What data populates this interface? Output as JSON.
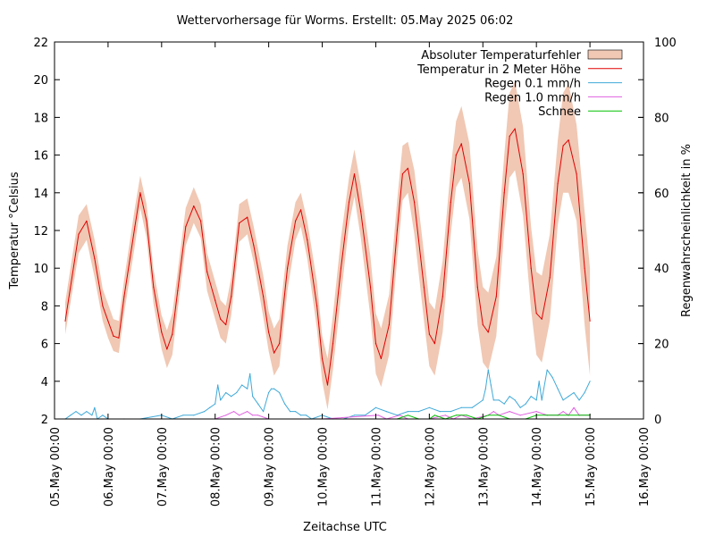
{
  "chart_data": {
    "type": "line",
    "title": "Wettervorhersage für Worms. Erstellt: 05.May 2025 06:02",
    "xlabel": "Zeitachse UTC",
    "ylabel": "Temperatur °Celsius",
    "y2label": "Regenwahrscheinlichkeit in %",
    "xlim": [
      0,
      11
    ],
    "ylim": [
      2,
      22
    ],
    "y2lim": [
      0,
      100
    ],
    "grid": false,
    "legend_position": "top-right",
    "x_tick_labels": [
      "05.May 00:00",
      "06.May 00:00",
      "07.May 00:00",
      "08.May 00:00",
      "09.May 00:00",
      "10.May 00:00",
      "11.May 00:00",
      "12.May 00:00",
      "13.May 00:00",
      "14.May 00:00",
      "15.May 00:00",
      "16.May 00:00"
    ],
    "y_ticks": [
      2,
      4,
      6,
      8,
      10,
      12,
      14,
      16,
      18,
      20,
      22
    ],
    "y2_ticks": [
      0,
      20,
      40,
      60,
      80,
      100
    ],
    "colors": {
      "band": "#f0c8b4",
      "temperature": "#e00000",
      "rain01": "#3fa9d8",
      "rain10": "#e060e0",
      "snow": "#00c000"
    },
    "legend": [
      {
        "key": "band",
        "label": "Absoluter Temperaturfehler"
      },
      {
        "key": "temperature",
        "label": "Temperatur in 2 Meter Höhe"
      },
      {
        "key": "rain01",
        "label": "Regen 0.1 mm/h"
      },
      {
        "key": "rain10",
        "label": "Regen 1.0 mm/h"
      },
      {
        "key": "snow",
        "label": "Schnee"
      }
    ],
    "series": [
      {
        "name": "Temperatur in 2 Meter Höhe",
        "key": "temperature",
        "x": [
          0.2,
          0.45,
          0.6,
          0.75,
          0.9,
          1.0,
          1.1,
          1.2,
          1.3,
          1.5,
          1.6,
          1.72,
          1.85,
          2.0,
          2.1,
          2.2,
          2.3,
          2.45,
          2.6,
          2.73,
          2.85,
          3.0,
          3.1,
          3.2,
          3.3,
          3.45,
          3.6,
          3.72,
          3.9,
          4.0,
          4.1,
          4.2,
          4.35,
          4.5,
          4.6,
          4.72,
          4.9,
          5.0,
          5.1,
          5.2,
          5.35,
          5.5,
          5.6,
          5.72,
          5.9,
          6.0,
          6.1,
          6.25,
          6.4,
          6.5,
          6.6,
          6.72,
          6.9,
          7.0,
          7.1,
          7.25,
          7.4,
          7.5,
          7.6,
          7.75,
          7.9,
          8.0,
          8.1,
          8.25,
          8.4,
          8.5,
          8.6,
          8.75,
          8.9,
          9.0,
          9.1,
          9.25,
          9.4,
          9.5,
          9.6,
          9.75,
          9.9,
          10.0
        ],
        "values": [
          7.2,
          11.8,
          12.5,
          10.5,
          8.0,
          7.2,
          6.4,
          6.3,
          8.5,
          12.2,
          14.0,
          12.5,
          9.0,
          6.6,
          5.7,
          6.5,
          8.8,
          12.2,
          13.3,
          12.5,
          9.8,
          8.3,
          7.3,
          7.0,
          8.5,
          12.4,
          12.7,
          11.2,
          8.5,
          6.6,
          5.5,
          6.0,
          10.0,
          12.5,
          13.1,
          11.5,
          8.0,
          5.2,
          3.8,
          6.0,
          10.0,
          13.5,
          15.0,
          13.0,
          9.0,
          6.0,
          5.2,
          7.0,
          12.0,
          15.0,
          15.3,
          13.5,
          9.0,
          6.5,
          6.0,
          8.5,
          13.5,
          16.0,
          16.6,
          14.5,
          9.0,
          7.0,
          6.6,
          8.5,
          14.0,
          17.0,
          17.4,
          15.0,
          10.0,
          7.6,
          7.3,
          9.5,
          14.5,
          16.5,
          16.8,
          15.0,
          10.0,
          7.2
        ]
      },
      {
        "name": "Absoluter Temperaturfehler",
        "key": "band",
        "x": [
          0.2,
          0.45,
          0.6,
          0.75,
          0.9,
          1.0,
          1.1,
          1.2,
          1.3,
          1.5,
          1.6,
          1.72,
          1.85,
          2.0,
          2.1,
          2.2,
          2.3,
          2.45,
          2.6,
          2.73,
          2.85,
          3.0,
          3.1,
          3.2,
          3.3,
          3.45,
          3.6,
          3.72,
          3.9,
          4.0,
          4.1,
          4.2,
          4.35,
          4.5,
          4.6,
          4.72,
          4.9,
          5.0,
          5.1,
          5.2,
          5.35,
          5.5,
          5.6,
          5.72,
          5.9,
          6.0,
          6.1,
          6.25,
          6.4,
          6.5,
          6.6,
          6.72,
          6.9,
          7.0,
          7.1,
          7.25,
          7.4,
          7.5,
          7.6,
          7.75,
          7.9,
          8.0,
          8.1,
          8.25,
          8.4,
          8.5,
          8.6,
          8.75,
          8.9,
          9.0,
          9.1,
          9.25,
          9.4,
          9.5,
          9.6,
          9.75,
          9.9,
          10.0
        ],
        "lower": [
          6.5,
          10.8,
          11.5,
          9.5,
          7.2,
          6.3,
          5.6,
          5.5,
          7.6,
          11.2,
          13.2,
          11.6,
          8.1,
          5.7,
          4.7,
          5.4,
          7.8,
          11.2,
          12.4,
          11.6,
          8.8,
          7.3,
          6.3,
          6.0,
          7.5,
          11.4,
          11.8,
          10.3,
          7.4,
          5.6,
          4.3,
          4.8,
          8.8,
          11.5,
          12.2,
          10.5,
          6.8,
          4.0,
          2.5,
          4.6,
          8.5,
          12.3,
          13.8,
          11.6,
          7.4,
          4.4,
          3.7,
          5.4,
          10.5,
          13.6,
          14.0,
          11.8,
          7.2,
          4.8,
          4.3,
          6.6,
          11.8,
          14.3,
          14.8,
          12.6,
          7.0,
          5.0,
          4.6,
          6.4,
          12.0,
          14.8,
          15.2,
          12.8,
          7.8,
          5.4,
          5.0,
          7.2,
          12.3,
          14.0,
          14.0,
          12.5,
          7.0,
          4.3
        ],
        "upper": [
          8.2,
          12.8,
          13.4,
          11.5,
          8.9,
          8.1,
          7.3,
          7.2,
          9.4,
          13.2,
          14.9,
          13.4,
          9.9,
          7.5,
          6.7,
          7.6,
          9.8,
          13.2,
          14.3,
          13.4,
          10.8,
          9.3,
          8.3,
          8.0,
          9.5,
          13.4,
          13.7,
          12.2,
          9.6,
          7.7,
          6.8,
          7.3,
          11.2,
          13.5,
          14.0,
          12.5,
          9.3,
          6.4,
          5.2,
          7.5,
          11.6,
          14.8,
          16.3,
          14.4,
          10.6,
          7.6,
          6.8,
          8.6,
          13.6,
          16.5,
          16.7,
          15.2,
          10.8,
          8.2,
          7.8,
          10.4,
          15.3,
          17.8,
          18.6,
          16.6,
          11.0,
          9.0,
          8.7,
          10.6,
          16.0,
          19.3,
          19.9,
          17.5,
          12.2,
          9.8,
          9.6,
          11.8,
          16.8,
          19.3,
          19.8,
          17.6,
          13.0,
          10.0
        ]
      },
      {
        "name": "Regen 0.1 mm/h",
        "key": "rain01",
        "x": [
          0.2,
          0.3,
          0.4,
          0.5,
          0.6,
          0.7,
          0.75,
          0.8,
          0.9,
          1.0,
          1.3,
          1.6,
          2.0,
          2.2,
          2.4,
          2.6,
          2.8,
          2.9,
          3.0,
          3.05,
          3.1,
          3.2,
          3.3,
          3.4,
          3.5,
          3.6,
          3.65,
          3.7,
          3.8,
          3.9,
          4.0,
          4.05,
          4.1,
          4.2,
          4.3,
          4.4,
          4.5,
          4.6,
          4.7,
          4.8,
          5.0,
          5.2,
          5.4,
          5.6,
          5.8,
          6.0,
          6.2,
          6.4,
          6.6,
          6.8,
          7.0,
          7.2,
          7.4,
          7.6,
          7.8,
          8.0,
          8.05,
          8.1,
          8.15,
          8.2,
          8.3,
          8.4,
          8.5,
          8.6,
          8.7,
          8.8,
          8.9,
          9.0,
          9.05,
          9.1,
          9.2,
          9.3,
          9.4,
          9.5,
          9.6,
          9.7,
          9.8,
          9.9,
          10.0
        ],
        "values": [
          0,
          1,
          2,
          1,
          2,
          1,
          3,
          0,
          1,
          0,
          0,
          0,
          1,
          0,
          1,
          1,
          2,
          3,
          4,
          9,
          5,
          7,
          6,
          7,
          9,
          8,
          12,
          6,
          4,
          2,
          7,
          8,
          8,
          7,
          4,
          2,
          2,
          1,
          1,
          0,
          1,
          0,
          0,
          1,
          1,
          3,
          2,
          1,
          2,
          2,
          3,
          2,
          2,
          3,
          3,
          5,
          8,
          13,
          9,
          5,
          5,
          4,
          6,
          5,
          3,
          4,
          6,
          5,
          10,
          5,
          13,
          11,
          8,
          5,
          6,
          7,
          5,
          7,
          10
        ]
      },
      {
        "name": "Regen 1.0 mm/h",
        "key": "rain10",
        "x": [
          3.0,
          3.2,
          3.35,
          3.45,
          3.6,
          3.7,
          3.8,
          4.0,
          4.6,
          5.0,
          6.05,
          6.2,
          6.45,
          6.6,
          7.0,
          7.3,
          7.45,
          7.6,
          7.8,
          8.1,
          8.2,
          8.3,
          8.5,
          8.7,
          9.0,
          9.2,
          9.4,
          9.5,
          9.6,
          9.7,
          9.8,
          10.0
        ],
        "values": [
          0,
          1,
          2,
          1,
          2,
          1,
          1,
          0,
          0,
          0,
          1,
          0,
          1,
          0,
          0,
          1,
          0,
          1,
          0,
          1,
          2,
          1,
          2,
          1,
          2,
          1,
          1,
          2,
          1,
          3,
          1,
          1
        ]
      },
      {
        "name": "Schnee",
        "key": "snow",
        "x": [
          6.4,
          6.6,
          6.8,
          7.0,
          7.1,
          7.3,
          7.5,
          7.7,
          7.9,
          8.1,
          8.3,
          8.5,
          8.8,
          9.0,
          9.2,
          9.4,
          9.6,
          9.8,
          10.0
        ],
        "values": [
          0,
          1,
          0,
          0,
          1,
          0,
          1,
          1,
          0,
          1,
          1,
          0,
          0,
          1,
          1,
          1,
          1,
          1,
          1
        ]
      }
    ]
  }
}
